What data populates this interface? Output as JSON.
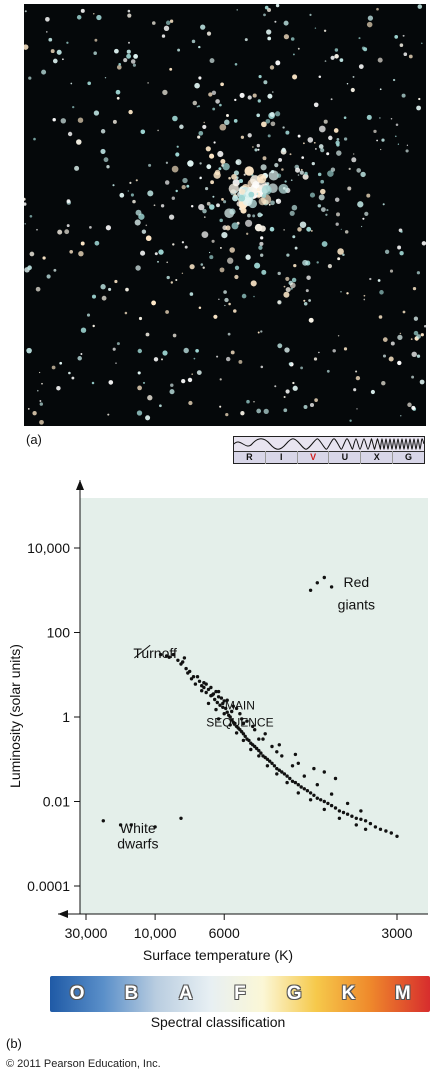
{
  "panel_a": {
    "label": "(a)"
  },
  "spectrum": {
    "bands": [
      "R",
      "I",
      "V",
      "U",
      "X",
      "G"
    ],
    "active": "V",
    "active_color": "#d21f1f"
  },
  "panel_b": {
    "label": "(b)"
  },
  "chart_data": {
    "type": "scatter",
    "title": "",
    "xlabel": "Surface temperature (K)",
    "ylabel": "Luminosity (solar units)",
    "x_scale": "reciprocal temperature (hot on left)",
    "y_scale": "log",
    "x_ticks": [
      30000,
      10000,
      6000,
      3000
    ],
    "x_tick_labels": [
      "30,000",
      "10,000",
      "6000",
      "3000"
    ],
    "y_ticks": [
      10000,
      100,
      1,
      0.01,
      0.0001
    ],
    "y_tick_labels": [
      "10,000",
      "100",
      "1",
      "0.01",
      "0.0001"
    ],
    "background_color": "#e4efea",
    "annotations": [
      {
        "text": "Red",
        "x": 3400,
        "y": 1200
      },
      {
        "text": "giants",
        "x": 3400,
        "y": 350
      },
      {
        "text": "Turnoff",
        "x": 10000,
        "y": 25
      },
      {
        "text": "MAIN",
        "x": 5500,
        "y": 1.5
      },
      {
        "text": "SEQUENCE",
        "x": 5500,
        "y": 0.6
      },
      {
        "text": "White",
        "x": 12000,
        "y": 0.0018
      },
      {
        "text": "dwarfs",
        "x": 12000,
        "y": 0.00078
      }
    ],
    "series": [
      {
        "points": [
          [
            4000,
            1000
          ],
          [
            3900,
            1500
          ],
          [
            3800,
            2000
          ],
          [
            3700,
            1200
          ],
          [
            9500,
            30
          ],
          [
            9000,
            28
          ],
          [
            8800,
            26
          ],
          [
            8500,
            30
          ],
          [
            8200,
            22
          ],
          [
            8000,
            18
          ],
          [
            7900,
            20
          ],
          [
            7800,
            25
          ],
          [
            7700,
            14
          ],
          [
            7500,
            12
          ],
          [
            7300,
            9
          ],
          [
            7000,
            7
          ],
          [
            6800,
            5
          ],
          [
            6600,
            4.5
          ],
          [
            6400,
            3.5
          ],
          [
            6300,
            4
          ],
          [
            6200,
            3
          ],
          [
            6100,
            2.8
          ],
          [
            6000,
            2.4
          ],
          [
            7600,
            11
          ],
          [
            7400,
            8
          ],
          [
            7200,
            6
          ],
          [
            6900,
            5.5
          ],
          [
            6700,
            3.8
          ],
          [
            6500,
            3.2
          ],
          [
            6350,
            2.6
          ],
          [
            6250,
            2.2
          ],
          [
            6150,
            1.9
          ],
          [
            6050,
            1.7
          ],
          [
            5950,
            1.6
          ],
          [
            5900,
            1.3
          ],
          [
            5850,
            1.1
          ],
          [
            5800,
            1.0
          ],
          [
            5750,
            0.85
          ],
          [
            5700,
            0.75
          ],
          [
            5650,
            0.7
          ],
          [
            5600,
            0.6
          ],
          [
            5550,
            0.55
          ],
          [
            5500,
            0.5
          ],
          [
            5450,
            0.45
          ],
          [
            5400,
            0.4
          ],
          [
            5350,
            0.35
          ],
          [
            5300,
            0.3
          ],
          [
            5250,
            0.28
          ],
          [
            5200,
            0.24
          ],
          [
            5150,
            0.22
          ],
          [
            5100,
            0.2
          ],
          [
            5050,
            0.18
          ],
          [
            5000,
            0.16
          ],
          [
            4950,
            0.14
          ],
          [
            4900,
            0.12
          ],
          [
            4850,
            0.11
          ],
          [
            4800,
            0.1
          ],
          [
            4750,
            0.09
          ],
          [
            4700,
            0.08
          ],
          [
            4650,
            0.07
          ],
          [
            4600,
            0.06
          ],
          [
            4550,
            0.055
          ],
          [
            4500,
            0.05
          ],
          [
            4450,
            0.045
          ],
          [
            4400,
            0.04
          ],
          [
            4350,
            0.035
          ],
          [
            4300,
            0.03
          ],
          [
            4250,
            0.028
          ],
          [
            4200,
            0.025
          ],
          [
            4150,
            0.022
          ],
          [
            4100,
            0.02
          ],
          [
            4050,
            0.018
          ],
          [
            4000,
            0.016
          ],
          [
            3950,
            0.014
          ],
          [
            3900,
            0.012
          ],
          [
            3850,
            0.011
          ],
          [
            3800,
            0.01
          ],
          [
            3750,
            0.009
          ],
          [
            3700,
            0.008
          ],
          [
            3650,
            0.007
          ],
          [
            3600,
            0.006
          ],
          [
            3550,
            0.0055
          ],
          [
            3500,
            0.005
          ],
          [
            3450,
            0.0045
          ],
          [
            3400,
            0.004
          ],
          [
            3350,
            0.0038
          ],
          [
            3300,
            0.0035
          ],
          [
            3250,
            0.003
          ],
          [
            3200,
            0.0025
          ],
          [
            3150,
            0.0022
          ],
          [
            3100,
            0.002
          ],
          [
            3050,
            0.0018
          ],
          [
            3000,
            0.0015
          ],
          [
            6900,
            4.2
          ],
          [
            6600,
            2.1
          ],
          [
            6300,
            1.5
          ],
          [
            6000,
            1.2
          ],
          [
            5800,
            0.65
          ],
          [
            5600,
            0.42
          ],
          [
            5400,
            0.28
          ],
          [
            5200,
            0.17
          ],
          [
            5000,
            0.12
          ],
          [
            4800,
            0.07
          ],
          [
            4600,
            0.045
          ],
          [
            4400,
            0.028
          ],
          [
            4200,
            0.016
          ],
          [
            4000,
            0.011
          ],
          [
            3800,
            0.0065
          ],
          [
            3600,
            0.004
          ],
          [
            3400,
            0.0028
          ],
          [
            3300,
            0.0022
          ],
          [
            7100,
            9
          ],
          [
            6800,
            6.5
          ],
          [
            6500,
            5
          ],
          [
            6200,
            4
          ],
          [
            5900,
            2.5
          ],
          [
            5700,
            1.8
          ],
          [
            5500,
            1.2
          ],
          [
            5300,
            0.8
          ],
          [
            5100,
            0.5
          ],
          [
            4900,
            0.3
          ],
          [
            4700,
            0.2
          ],
          [
            4500,
            0.12
          ],
          [
            4300,
            0.07
          ],
          [
            4100,
            0.04
          ],
          [
            3900,
            0.025
          ],
          [
            3700,
            0.015
          ],
          [
            3500,
            0.009
          ],
          [
            3350,
            0.006
          ],
          [
            6700,
            6
          ],
          [
            6450,
            3.3
          ],
          [
            6050,
            2.1
          ],
          [
            5750,
            1.35
          ],
          [
            5450,
            0.9
          ],
          [
            5150,
            0.6
          ],
          [
            4850,
            0.4
          ],
          [
            4550,
            0.22
          ],
          [
            4250,
            0.13
          ],
          [
            3950,
            0.06
          ],
          [
            3650,
            0.035
          ],
          [
            6200,
            0.9
          ],
          [
            5600,
            1.6
          ],
          [
            5400,
            0.7
          ],
          [
            5000,
            0.3
          ],
          [
            4600,
            0.15
          ],
          [
            4200,
            0.08
          ],
          [
            3800,
            0.05
          ],
          [
            20000,
            0.0035
          ],
          [
            15000,
            0.0028
          ],
          [
            13000,
            0.0028
          ],
          [
            10000,
            0.0025
          ],
          [
            8000,
            0.004
          ]
        ]
      }
    ]
  },
  "spectral_classes": [
    "O",
    "B",
    "A",
    "F",
    "G",
    "K",
    "M"
  ],
  "spectral_caption": "Spectral classification",
  "copyright": "© 2011 Pearson Education, Inc."
}
